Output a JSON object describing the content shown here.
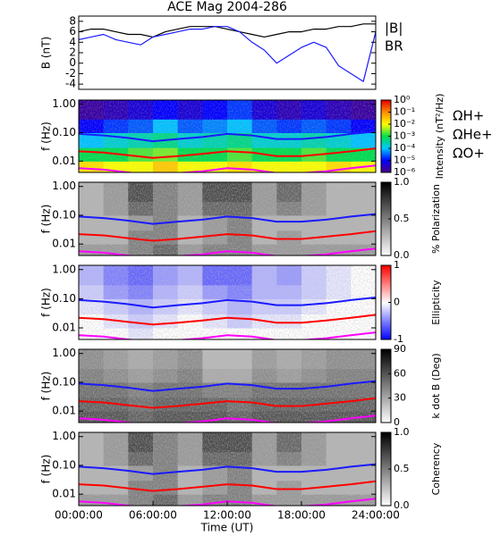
{
  "chart_data": [
    {
      "type": "line",
      "title": "ACE Mag 2004-286",
      "y_label": "B (nT)",
      "x": [
        0,
        1,
        2,
        3,
        4,
        5,
        6,
        7,
        8,
        9,
        10,
        11,
        12,
        13,
        14,
        15,
        16,
        17,
        18,
        19,
        20,
        21,
        22,
        23,
        24
      ],
      "xlim": [
        0,
        24
      ],
      "ylim": [
        -5,
        9
      ],
      "yticks": [
        -4,
        -2,
        0,
        2,
        4,
        6,
        8
      ],
      "series": [
        {
          "name": "|B|",
          "color": "#000000",
          "values": [
            6,
            6.5,
            6.5,
            6,
            5.5,
            5.5,
            5,
            6,
            6.5,
            7,
            7,
            7,
            6.5,
            6,
            5.5,
            5,
            5.5,
            6,
            6,
            6.5,
            6.5,
            7,
            7,
            7.5,
            7.5
          ]
        },
        {
          "name": "BR",
          "color": "#1a1aff",
          "values": [
            4.5,
            5,
            5.5,
            4.5,
            4,
            3.5,
            5,
            5.5,
            6,
            6.5,
            6.5,
            7,
            7,
            6,
            4,
            2.5,
            0,
            1.5,
            3,
            4,
            3,
            -0.5,
            -2,
            -3.5,
            6
          ]
        }
      ]
    },
    {
      "type": "heatmap",
      "y_label": "f (Hz)",
      "log_y": true,
      "xlim": [
        0,
        24
      ],
      "ylim": [
        0.004,
        1.4
      ],
      "yticks": [
        {
          "value": 1,
          "label": "1.00"
        },
        {
          "value": 0.1,
          "label": "0.10"
        },
        {
          "value": 0.01,
          "label": "0.01"
        }
      ],
      "xbins": [
        0,
        2,
        4,
        6,
        8,
        10,
        12,
        14,
        16,
        18,
        20,
        22,
        24
      ],
      "ybins": [
        0.004,
        0.01,
        0.03,
        0.1,
        0.3,
        1.4
      ],
      "z": [
        [
          0.02,
          0.01,
          0.01,
          0.03,
          0.01,
          0.01,
          0.02,
          0.01,
          0.01,
          0.01,
          0.02,
          0.01
        ],
        [
          0.001,
          0.001,
          0.002,
          0.003,
          0.001,
          0.001,
          0.002,
          0.001,
          0.001,
          0.002,
          0.001,
          0.001
        ],
        [
          0.0001,
          0.0002,
          0.0003,
          0.0005,
          0.0002,
          0.0003,
          0.0005,
          0.0002,
          0.0002,
          0.0003,
          0.0002,
          0.0001
        ],
        [
          1e-05,
          2e-05,
          3e-05,
          0.0001,
          3e-05,
          5e-05,
          0.0001,
          3e-05,
          2e-05,
          3e-05,
          2e-05,
          1e-05
        ],
        [
          2e-06,
          3e-06,
          5e-06,
          1e-05,
          5e-06,
          1e-05,
          2e-05,
          5e-06,
          3e-06,
          5e-06,
          3e-06,
          2e-06
        ]
      ],
      "colorbar": {
        "label": "Intensity (nT²/Hz)",
        "colormap": "rainbow",
        "log": true,
        "lim": [
          1e-06,
          1
        ],
        "ticks": [
          {
            "value": 1,
            "label": "10⁰"
          },
          {
            "value": 0.1,
            "label": "10⁻¹"
          },
          {
            "value": 0.01,
            "label": "10⁻²"
          },
          {
            "value": 0.001,
            "label": "10⁻³"
          },
          {
            "value": 0.0001,
            "label": "10⁻⁴"
          },
          {
            "value": 1e-05,
            "label": "10⁻⁵"
          },
          {
            "value": 1e-06,
            "label": "10⁻⁶"
          }
        ]
      },
      "x": [
        0,
        2,
        4,
        6,
        8,
        10,
        12,
        14,
        16,
        18,
        20,
        22,
        24
      ],
      "series": [
        {
          "name": "ΩH+",
          "color": "#1a1aff",
          "values": [
            0.09,
            0.08,
            0.065,
            0.05,
            0.06,
            0.07,
            0.09,
            0.08,
            0.06,
            0.06,
            0.07,
            0.09,
            0.11
          ]
        },
        {
          "name": "ΩHe+",
          "color": "#ff0000",
          "values": [
            0.022,
            0.02,
            0.016,
            0.013,
            0.015,
            0.018,
            0.022,
            0.02,
            0.015,
            0.015,
            0.018,
            0.022,
            0.028
          ]
        },
        {
          "name": "ΩO+",
          "color": "#ff00ff",
          "values": [
            0.0056,
            0.005,
            0.004,
            0.0032,
            0.0038,
            0.0044,
            0.0056,
            0.005,
            0.0038,
            0.0038,
            0.0044,
            0.0056,
            0.007
          ]
        }
      ]
    },
    {
      "type": "heatmap",
      "y_label": "f (Hz)",
      "log_y": true,
      "xlim": [
        0,
        24
      ],
      "ylim": [
        0.004,
        1.4
      ],
      "yticks": [
        {
          "value": 1,
          "label": "1.00"
        },
        {
          "value": 0.1,
          "label": "0.10"
        },
        {
          "value": 0.01,
          "label": "0.01"
        }
      ],
      "xbins": [
        0,
        2,
        4,
        6,
        8,
        10,
        12,
        14,
        16,
        18,
        20,
        22,
        24
      ],
      "ybins": [
        0.004,
        0.01,
        0.03,
        0.1,
        0.3,
        1.4
      ],
      "z": [
        [
          0.4,
          0.4,
          0.5,
          0.6,
          0.4,
          0.5,
          0.5,
          0.4,
          0.4,
          0.4,
          0.4,
          0.4
        ],
        [
          0.3,
          0.3,
          0.5,
          0.5,
          0.3,
          0.4,
          0.5,
          0.3,
          0.4,
          0.3,
          0.3,
          0.3
        ],
        [
          0.3,
          0.3,
          0.4,
          0.5,
          0.3,
          0.4,
          0.5,
          0.3,
          0.3,
          0.3,
          0.3,
          0.3
        ],
        [
          0.3,
          0.4,
          0.6,
          0.5,
          0.4,
          0.6,
          0.6,
          0.4,
          0.5,
          0.4,
          0.3,
          0.3
        ],
        [
          0.3,
          0.4,
          0.7,
          0.5,
          0.4,
          0.7,
          0.7,
          0.4,
          0.6,
          0.4,
          0.3,
          0.3
        ]
      ],
      "colorbar": {
        "label": "% Polarization",
        "colormap": "gray",
        "log": false,
        "lim": [
          0,
          1
        ],
        "ticks": [
          {
            "value": 1,
            "label": "1.0"
          },
          {
            "value": 0.5,
            "label": "0.5"
          },
          {
            "value": 0,
            "label": "0.0"
          }
        ]
      },
      "x": [
        0,
        2,
        4,
        6,
        8,
        10,
        12,
        14,
        16,
        18,
        20,
        22,
        24
      ],
      "series": [
        {
          "color": "#1a1aff",
          "values": [
            0.09,
            0.08,
            0.065,
            0.05,
            0.06,
            0.07,
            0.09,
            0.08,
            0.06,
            0.06,
            0.07,
            0.09,
            0.11
          ]
        },
        {
          "color": "#ff0000",
          "values": [
            0.022,
            0.02,
            0.016,
            0.013,
            0.015,
            0.018,
            0.022,
            0.02,
            0.015,
            0.015,
            0.018,
            0.022,
            0.028
          ]
        },
        {
          "color": "#ff00ff",
          "values": [
            0.0056,
            0.005,
            0.004,
            0.0032,
            0.0038,
            0.0044,
            0.0056,
            0.005,
            0.0038,
            0.0038,
            0.0044,
            0.0056,
            0.007
          ]
        }
      ]
    },
    {
      "type": "heatmap",
      "y_label": "f (Hz)",
      "log_y": true,
      "xlim": [
        0,
        24
      ],
      "ylim": [
        0.004,
        1.4
      ],
      "yticks": [
        {
          "value": 1,
          "label": "1.00"
        },
        {
          "value": 0.1,
          "label": "0.10"
        },
        {
          "value": 0.01,
          "label": "0.01"
        }
      ],
      "xbins": [
        0,
        2,
        4,
        6,
        8,
        10,
        12,
        14,
        16,
        18,
        20,
        22,
        24
      ],
      "ybins": [
        0.004,
        0.01,
        0.03,
        0.1,
        0.3,
        1.4
      ],
      "z": [
        [
          0,
          0,
          -0.1,
          0,
          0,
          0,
          0,
          0,
          0,
          0,
          0,
          0
        ],
        [
          0,
          -0.1,
          -0.2,
          -0.1,
          0,
          -0.1,
          -0.2,
          -0.1,
          -0.1,
          0,
          0,
          0
        ],
        [
          -0.1,
          -0.2,
          -0.3,
          -0.2,
          -0.1,
          -0.2,
          -0.3,
          -0.2,
          -0.2,
          -0.1,
          0,
          0
        ],
        [
          -0.2,
          -0.4,
          -0.5,
          -0.3,
          -0.2,
          -0.4,
          -0.5,
          -0.3,
          -0.3,
          -0.2,
          -0.1,
          0
        ],
        [
          -0.3,
          -0.5,
          -0.6,
          -0.4,
          -0.3,
          -0.6,
          -0.6,
          -0.3,
          -0.4,
          -0.2,
          -0.1,
          0
        ]
      ],
      "colorbar": {
        "label": "Ellipticity",
        "colormap": "bwr",
        "log": false,
        "lim": [
          -1,
          1
        ],
        "ticks": [
          1,
          0,
          -1
        ]
      },
      "x": [
        0,
        2,
        4,
        6,
        8,
        10,
        12,
        14,
        16,
        18,
        20,
        22,
        24
      ],
      "series": [
        {
          "color": "#1a1aff",
          "values": [
            0.09,
            0.08,
            0.065,
            0.05,
            0.06,
            0.07,
            0.09,
            0.08,
            0.06,
            0.06,
            0.07,
            0.09,
            0.11
          ]
        },
        {
          "color": "#ff0000",
          "values": [
            0.022,
            0.02,
            0.016,
            0.013,
            0.015,
            0.018,
            0.022,
            0.02,
            0.015,
            0.015,
            0.018,
            0.022,
            0.028
          ]
        },
        {
          "color": "#ff00ff",
          "values": [
            0.0056,
            0.005,
            0.004,
            0.0032,
            0.0038,
            0.0044,
            0.0056,
            0.005,
            0.0038,
            0.0038,
            0.0044,
            0.0056,
            0.007
          ]
        }
      ]
    },
    {
      "type": "heatmap",
      "y_label": "f (Hz)",
      "log_y": true,
      "xlim": [
        0,
        24
      ],
      "ylim": [
        0.004,
        1.4
      ],
      "yticks": [
        {
          "value": 1,
          "label": "1.00"
        },
        {
          "value": 0.1,
          "label": "0.10"
        },
        {
          "value": 0.01,
          "label": "0.01"
        }
      ],
      "xbins": [
        0,
        2,
        4,
        6,
        8,
        10,
        12,
        14,
        16,
        18,
        20,
        22,
        24
      ],
      "ybins": [
        0.004,
        0.01,
        0.03,
        0.1,
        0.3,
        1.4
      ],
      "z": [
        [
          60,
          60,
          55,
          60,
          60,
          60,
          55,
          60,
          60,
          60,
          60,
          60
        ],
        [
          55,
          55,
          50,
          55,
          55,
          55,
          50,
          55,
          55,
          55,
          55,
          55
        ],
        [
          50,
          50,
          45,
          50,
          50,
          45,
          45,
          50,
          50,
          50,
          50,
          50
        ],
        [
          45,
          40,
          35,
          40,
          45,
          30,
          30,
          40,
          35,
          40,
          45,
          45
        ],
        [
          40,
          35,
          30,
          35,
          40,
          25,
          25,
          35,
          30,
          35,
          40,
          40
        ]
      ],
      "colorbar": {
        "label": "k dot B (Deg)",
        "colormap": "gray",
        "log": false,
        "lim": [
          0,
          90
        ],
        "ticks": [
          90,
          60,
          30,
          0
        ]
      },
      "x": [
        0,
        2,
        4,
        6,
        8,
        10,
        12,
        14,
        16,
        18,
        20,
        22,
        24
      ],
      "series": [
        {
          "color": "#1a1aff",
          "values": [
            0.09,
            0.08,
            0.065,
            0.05,
            0.06,
            0.07,
            0.09,
            0.08,
            0.06,
            0.06,
            0.07,
            0.09,
            0.11
          ]
        },
        {
          "color": "#ff0000",
          "values": [
            0.022,
            0.02,
            0.016,
            0.013,
            0.015,
            0.018,
            0.022,
            0.02,
            0.015,
            0.015,
            0.018,
            0.022,
            0.028
          ]
        },
        {
          "color": "#ff00ff",
          "values": [
            0.0056,
            0.005,
            0.004,
            0.0032,
            0.0038,
            0.0044,
            0.0056,
            0.005,
            0.0038,
            0.0038,
            0.0044,
            0.0056,
            0.007
          ]
        }
      ]
    },
    {
      "type": "heatmap",
      "y_label": "f (Hz)",
      "log_y": true,
      "x_label": "Time (UT)",
      "xlim": [
        0,
        24
      ],
      "ylim": [
        0.004,
        1.4
      ],
      "xticks": [
        {
          "value": 0,
          "label": "00:00:00"
        },
        {
          "value": 6,
          "label": "06:00:00"
        },
        {
          "value": 12,
          "label": "12:00:00"
        },
        {
          "value": 18,
          "label": "18:00:00"
        },
        {
          "value": 24,
          "label": "24:00:00"
        }
      ],
      "yticks": [
        {
          "value": 1,
          "label": "1.00"
        },
        {
          "value": 0.1,
          "label": "0.10"
        },
        {
          "value": 0.01,
          "label": "0.01"
        }
      ],
      "xbins": [
        0,
        2,
        4,
        6,
        8,
        10,
        12,
        14,
        16,
        18,
        20,
        22,
        24
      ],
      "ybins": [
        0.004,
        0.01,
        0.03,
        0.1,
        0.3,
        1.4
      ],
      "z": [
        [
          0.4,
          0.4,
          0.5,
          0.6,
          0.4,
          0.5,
          0.5,
          0.4,
          0.4,
          0.4,
          0.4,
          0.4
        ],
        [
          0.3,
          0.3,
          0.5,
          0.5,
          0.3,
          0.4,
          0.5,
          0.3,
          0.4,
          0.3,
          0.3,
          0.3
        ],
        [
          0.3,
          0.3,
          0.4,
          0.5,
          0.3,
          0.4,
          0.5,
          0.3,
          0.3,
          0.3,
          0.3,
          0.3
        ],
        [
          0.3,
          0.4,
          0.6,
          0.5,
          0.4,
          0.6,
          0.6,
          0.4,
          0.5,
          0.4,
          0.3,
          0.3
        ],
        [
          0.3,
          0.4,
          0.7,
          0.5,
          0.4,
          0.7,
          0.7,
          0.4,
          0.6,
          0.4,
          0.3,
          0.3
        ]
      ],
      "colorbar": {
        "label": "Coherency",
        "colormap": "gray",
        "log": false,
        "lim": [
          0,
          1
        ],
        "ticks": [
          {
            "value": 1,
            "label": "1.0"
          },
          {
            "value": 0.5,
            "label": "0.5"
          },
          {
            "value": 0,
            "label": "0.0"
          }
        ]
      },
      "x": [
        0,
        2,
        4,
        6,
        8,
        10,
        12,
        14,
        16,
        18,
        20,
        22,
        24
      ],
      "series": [
        {
          "color": "#1a1aff",
          "values": [
            0.09,
            0.08,
            0.065,
            0.05,
            0.06,
            0.07,
            0.09,
            0.08,
            0.06,
            0.06,
            0.07,
            0.09,
            0.11
          ]
        },
        {
          "color": "#ff0000",
          "values": [
            0.022,
            0.02,
            0.016,
            0.013,
            0.015,
            0.018,
            0.022,
            0.02,
            0.015,
            0.015,
            0.018,
            0.022,
            0.028
          ]
        },
        {
          "color": "#ff00ff",
          "values": [
            0.0056,
            0.005,
            0.004,
            0.0032,
            0.0038,
            0.0044,
            0.0056,
            0.005,
            0.0038,
            0.0038,
            0.0044,
            0.0056,
            0.007
          ]
        }
      ]
    }
  ]
}
